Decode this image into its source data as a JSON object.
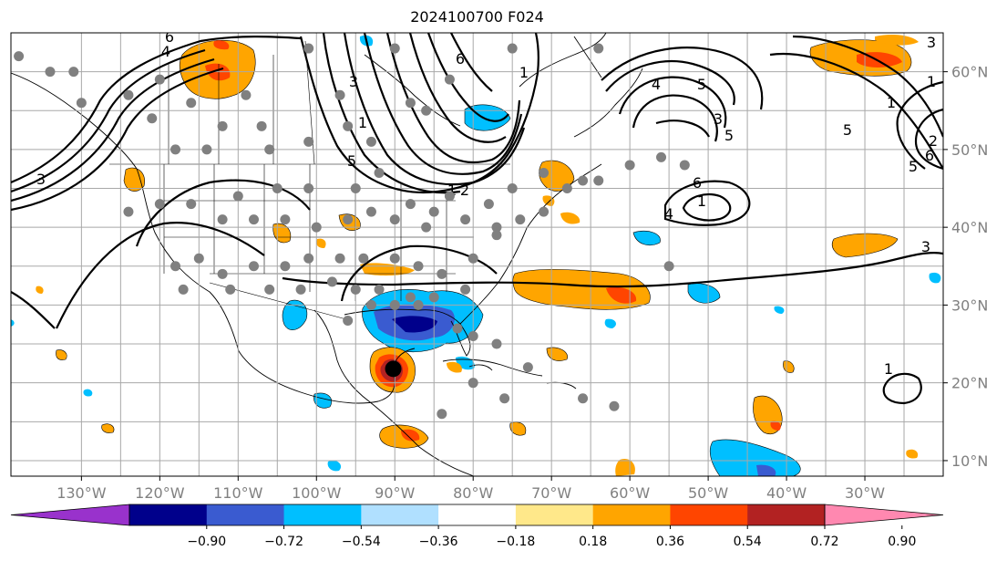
{
  "title": "2024100700 F024",
  "map": {
    "projection": "PlateCarree",
    "lon_range": [
      -139,
      -20
    ],
    "lat_range": [
      8,
      65
    ]
  },
  "x_ticks": [
    {
      "lon": -130,
      "label": "130°W"
    },
    {
      "lon": -120,
      "label": "120°W"
    },
    {
      "lon": -110,
      "label": "110°W"
    },
    {
      "lon": -100,
      "label": "100°W"
    },
    {
      "lon": -90,
      "label": "90°W"
    },
    {
      "lon": -80,
      "label": "80°W"
    },
    {
      "lon": -70,
      "label": "70°W"
    },
    {
      "lon": -60,
      "label": "60°W"
    },
    {
      "lon": -50,
      "label": "50°W"
    },
    {
      "lon": -40,
      "label": "40°W"
    },
    {
      "lon": -30,
      "label": "30°W"
    }
  ],
  "y_ticks": [
    {
      "lat": 60,
      "label": "60°N"
    },
    {
      "lat": 50,
      "label": "50°N"
    },
    {
      "lat": 40,
      "label": "40°N"
    },
    {
      "lat": 30,
      "label": "30°N"
    },
    {
      "lat": 20,
      "label": "20°N"
    },
    {
      "lat": 10,
      "label": "10°N"
    }
  ],
  "colorbar": {
    "extend": "both",
    "colors": [
      "#9932cc",
      "#00008b",
      "#3a5bd0",
      "#00bfff",
      "#b0e0ff",
      "#ffffff",
      "#ffe88a",
      "#ffa500",
      "#ff4500",
      "#b22222",
      "#ff88b0"
    ],
    "tick_labels": [
      "−0.90",
      "−0.72",
      "−0.54",
      "−0.36",
      "−0.18",
      "0.18",
      "0.36",
      "0.54",
      "0.72",
      "0.90"
    ]
  },
  "contour_labels": [
    "6",
    "4",
    "3",
    "1",
    "5",
    "3",
    "1",
    "6",
    "4",
    "5",
    "3",
    "5",
    "6",
    "1",
    "4",
    "5",
    "3",
    "1",
    "1",
    "2",
    "6",
    "5",
    "3",
    "1",
    "1",
    "2"
  ],
  "stations": [
    [
      -138,
      62
    ],
    [
      -134,
      60
    ],
    [
      -130,
      56
    ],
    [
      -131,
      60
    ],
    [
      -121,
      54
    ],
    [
      -118,
      50
    ],
    [
      -120,
      59
    ],
    [
      -124,
      57
    ],
    [
      -116,
      56
    ],
    [
      -112,
      53
    ],
    [
      -107,
      53
    ],
    [
      -109,
      57
    ],
    [
      -114,
      50
    ],
    [
      -106,
      50
    ],
    [
      -101,
      51
    ],
    [
      -96,
      53
    ],
    [
      -93,
      51
    ],
    [
      -86,
      55
    ],
    [
      -83,
      59
    ],
    [
      -88,
      56
    ],
    [
      -110,
      44
    ],
    [
      -105,
      45
    ],
    [
      -101,
      45
    ],
    [
      -95,
      45
    ],
    [
      -92,
      47
    ],
    [
      -88,
      43
    ],
    [
      -85,
      42
    ],
    [
      -83,
      44
    ],
    [
      -78,
      43
    ],
    [
      -75,
      45
    ],
    [
      -71,
      47
    ],
    [
      -68,
      45
    ],
    [
      -64,
      46
    ],
    [
      -60,
      48
    ],
    [
      -56,
      49
    ],
    [
      -53,
      48
    ],
    [
      -124,
      42
    ],
    [
      -120,
      43
    ],
    [
      -116,
      43
    ],
    [
      -112,
      41
    ],
    [
      -108,
      41
    ],
    [
      -104,
      41
    ],
    [
      -100,
      40
    ],
    [
      -96,
      41
    ],
    [
      -93,
      42
    ],
    [
      -90,
      41
    ],
    [
      -86,
      40
    ],
    [
      -81,
      41
    ],
    [
      -77,
      40
    ],
    [
      -74,
      41
    ],
    [
      -71,
      42
    ],
    [
      -118,
      35
    ],
    [
      -115,
      36
    ],
    [
      -112,
      34
    ],
    [
      -108,
      35
    ],
    [
      -104,
      35
    ],
    [
      -101,
      36
    ],
    [
      -97,
      36
    ],
    [
      -94,
      36
    ],
    [
      -90,
      36
    ],
    [
      -87,
      35
    ],
    [
      -84,
      34
    ],
    [
      -80,
      36
    ],
    [
      -77,
      39
    ],
    [
      -117,
      32
    ],
    [
      -111,
      32
    ],
    [
      -106,
      32
    ],
    [
      -102,
      32
    ],
    [
      -98,
      33
    ],
    [
      -95,
      32
    ],
    [
      -92,
      32
    ],
    [
      -88,
      31
    ],
    [
      -85,
      31
    ],
    [
      -81,
      32
    ],
    [
      -96,
      28
    ],
    [
      -93,
      30
    ],
    [
      -90,
      30
    ],
    [
      -87,
      30
    ],
    [
      -82,
      27
    ],
    [
      -80,
      26
    ],
    [
      -77,
      25
    ],
    [
      -73,
      22
    ],
    [
      -84,
      16
    ],
    [
      -80,
      20
    ],
    [
      -76,
      18
    ],
    [
      -66,
      18
    ],
    [
      -62,
      17
    ],
    [
      -66,
      46
    ],
    [
      -64,
      63
    ],
    [
      -75,
      63
    ],
    [
      -55,
      35
    ],
    [
      -97,
      57
    ],
    [
      -90,
      63
    ],
    [
      -101,
      63
    ]
  ],
  "hurricane_center": [
    -90.2,
    21.8
  ]
}
